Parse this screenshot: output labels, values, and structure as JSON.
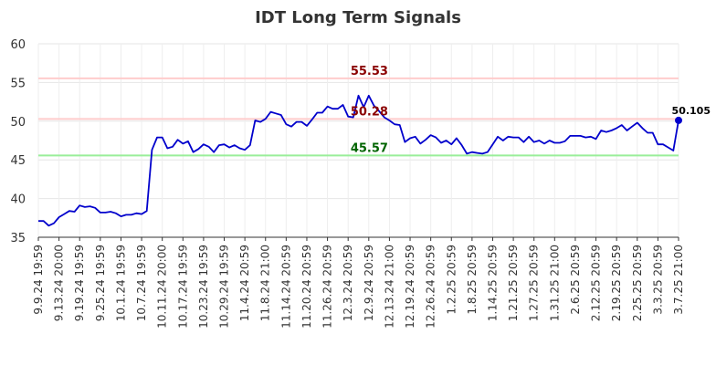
{
  "chart_data": {
    "type": "line",
    "title": "IDT Long Term Signals",
    "xlabel": "",
    "ylabel": "",
    "ylim": [
      35,
      60
    ],
    "yticks": [
      "35",
      "40",
      "45",
      "50",
      "55",
      "60"
    ],
    "grid": true,
    "x_tick_labels": [
      "9.9.24 19:59",
      "9.13.24 20:00",
      "9.19.24 19:59",
      "9.25.24 19:59",
      "10.1.24 19:59",
      "10.7.24 19:59",
      "10.11.24 20:00",
      "10.17.24 19:59",
      "10.23.24 19:59",
      "10.29.24 19:59",
      "11.4.24 20:59",
      "11.8.24 21:00",
      "11.14.24 20:59",
      "11.20.24 20:59",
      "11.26.24 20:59",
      "12.3.24 20:59",
      "12.9.24 20:59",
      "12.13.24 21:00",
      "12.19.24 20:59",
      "12.26.24 20:59",
      "1.2.25 20:59",
      "1.8.25 20:59",
      "1.14.25 20:59",
      "1.21.25 20:59",
      "1.27.25 20:59",
      "1.31.25 21:00",
      "2.6.25 20:59",
      "2.12.25 20:59",
      "2.19.25 20:59",
      "2.25.25 20:59",
      "3.3.25 20:59",
      "3.7.25 21:00"
    ],
    "tick_every": 4,
    "values": [
      37.1,
      37.1,
      36.5,
      36.8,
      37.6,
      38.0,
      38.4,
      38.3,
      39.1,
      38.9,
      39.0,
      38.8,
      38.2,
      38.2,
      38.3,
      38.1,
      37.7,
      37.9,
      37.9,
      38.1,
      38.0,
      38.4,
      46.3,
      47.9,
      47.9,
      46.5,
      46.7,
      47.6,
      47.1,
      47.4,
      46.0,
      46.4,
      47.0,
      46.7,
      46.0,
      46.9,
      47.0,
      46.6,
      46.9,
      46.5,
      46.3,
      46.9,
      50.1,
      49.9,
      50.3,
      51.2,
      51.0,
      50.8,
      49.6,
      49.3,
      49.9,
      49.9,
      49.4,
      50.2,
      51.1,
      51.1,
      51.9,
      51.6,
      51.6,
      52.1,
      50.6,
      50.5,
      53.3,
      51.8,
      53.3,
      52.0,
      51.3,
      50.5,
      50.1,
      49.6,
      49.5,
      47.3,
      47.8,
      48.0,
      47.1,
      47.6,
      48.2,
      47.9,
      47.2,
      47.5,
      47.0,
      47.8,
      46.9,
      45.8,
      46.0,
      45.9,
      45.8,
      46.0,
      47.0,
      48.0,
      47.5,
      48.0,
      47.9,
      47.9,
      47.3,
      48.0,
      47.3,
      47.5,
      47.1,
      47.5,
      47.2,
      47.2,
      47.4,
      48.1,
      48.1,
      48.1,
      47.9,
      48.0,
      47.7,
      48.8,
      48.6,
      48.8,
      49.1,
      49.5,
      48.8,
      49.3,
      49.8,
      49.1,
      48.5,
      48.5,
      47.0,
      47.0,
      46.6,
      46.2,
      50.105
    ],
    "line_color": "#0000cc",
    "signal_lines": [
      {
        "value": 55.53,
        "label": "55.53",
        "line_color": "#ffcccc",
        "label_color": "#8b0000"
      },
      {
        "value": 50.28,
        "label": "50.28",
        "line_color": "#ffcccc",
        "label_color": "#8b0000"
      },
      {
        "value": 45.57,
        "label": "45.57",
        "line_color": "#99ee99",
        "label_color": "#006400"
      }
    ],
    "last_value_label": "50.105"
  }
}
